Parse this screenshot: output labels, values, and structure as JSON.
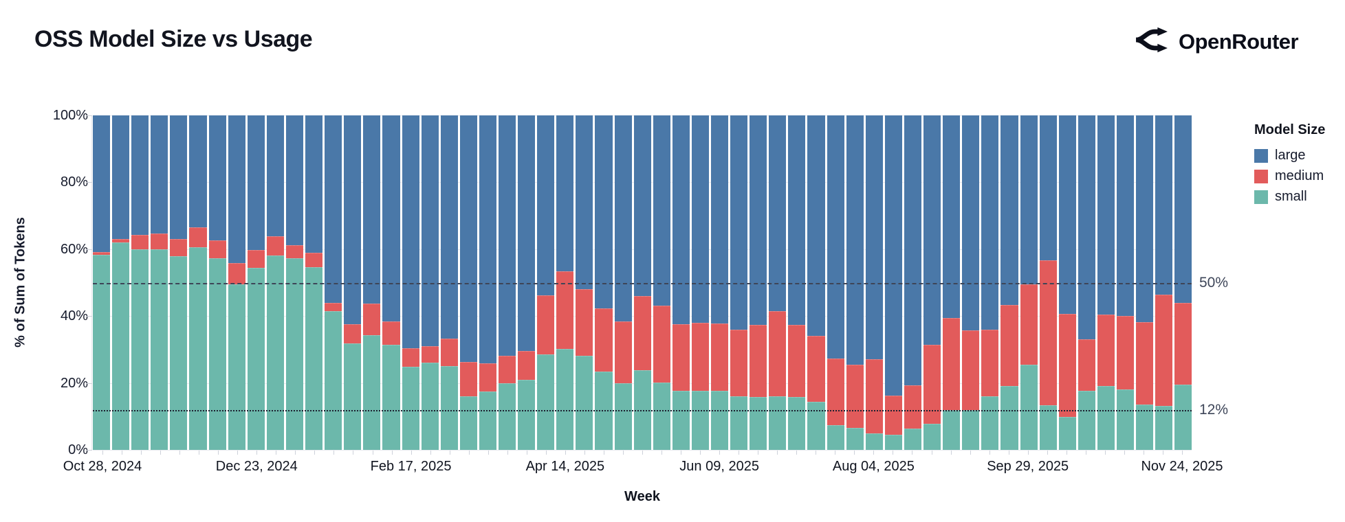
{
  "header": {
    "title": "OSS Model Size vs Usage",
    "brand": "OpenRouter"
  },
  "chart_data": {
    "type": "bar",
    "stacked": true,
    "title": "OSS Model Size vs Usage",
    "xlabel": "Week",
    "ylabel": "% of Sum of Tokens",
    "ylim": [
      0,
      100
    ],
    "grid": "horizontal",
    "y_gridlines": [
      0,
      20,
      40,
      60,
      80,
      100
    ],
    "y_ticks": [
      "0%",
      "20%",
      "40%",
      "60%",
      "80%",
      "100%"
    ],
    "x_tick_every": 8,
    "x_tick_labels": [
      "Oct 28, 2024",
      "Dec 23, 2024",
      "Feb 17, 2025",
      "Apr 14, 2025",
      "Jun 09, 2025",
      "Aug 04, 2025",
      "Sep 29, 2025",
      "Nov 24, 2025"
    ],
    "legend": {
      "title": "Model Size",
      "position": "right",
      "entries": [
        {
          "label": "large",
          "color": "#4A78A8"
        },
        {
          "label": "medium",
          "color": "#E25B5B"
        },
        {
          "label": "small",
          "color": "#6CB8AB"
        }
      ]
    },
    "reference_lines": [
      {
        "value": 50,
        "label": "50%",
        "style": "dashed",
        "color": "#3e4557"
      },
      {
        "value": 12,
        "label": "12%",
        "style": "dotted",
        "color": "#1c2130"
      }
    ],
    "categories": [
      "Oct 28, 2024",
      "Nov 04, 2024",
      "Nov 11, 2024",
      "Nov 18, 2024",
      "Nov 25, 2024",
      "Dec 02, 2024",
      "Dec 09, 2024",
      "Dec 16, 2024",
      "Dec 23, 2024",
      "Dec 30, 2024",
      "Jan 06, 2025",
      "Jan 13, 2025",
      "Jan 20, 2025",
      "Jan 27, 2025",
      "Feb 03, 2025",
      "Feb 10, 2025",
      "Feb 17, 2025",
      "Feb 24, 2025",
      "Mar 03, 2025",
      "Mar 10, 2025",
      "Mar 17, 2025",
      "Mar 24, 2025",
      "Mar 31, 2025",
      "Apr 07, 2025",
      "Apr 14, 2025",
      "Apr 21, 2025",
      "Apr 28, 2025",
      "May 05, 2025",
      "May 12, 2025",
      "May 19, 2025",
      "May 26, 2025",
      "Jun 02, 2025",
      "Jun 09, 2025",
      "Jun 16, 2025",
      "Jun 23, 2025",
      "Jun 30, 2025",
      "Jul 07, 2025",
      "Jul 14, 2025",
      "Jul 21, 2025",
      "Jul 28, 2025",
      "Aug 04, 2025",
      "Aug 11, 2025",
      "Aug 18, 2025",
      "Aug 25, 2025",
      "Sep 01, 2025",
      "Sep 08, 2025",
      "Sep 15, 2025",
      "Sep 22, 2025",
      "Sep 29, 2025",
      "Oct 06, 2025",
      "Oct 13, 2025",
      "Oct 20, 2025",
      "Oct 27, 2025",
      "Nov 03, 2025",
      "Nov 10, 2025",
      "Nov 17, 2025",
      "Nov 24, 2025"
    ],
    "series": [
      {
        "name": "large",
        "color": "#4A78A8",
        "values": [
          40.8,
          37,
          35.8,
          35.4,
          37,
          33.4,
          37.3,
          44.2,
          40.2,
          36.1,
          38.8,
          41,
          56.1,
          62.4,
          56.2,
          61.6,
          69.6,
          69,
          66.7,
          73.8,
          74.2,
          71.9,
          70.4,
          53.8,
          46.7,
          52,
          57.6,
          61.6,
          54.1,
          56.9,
          62.5,
          62,
          62.2,
          64.1,
          62.7,
          58.5,
          62.6,
          66,
          72.7,
          74.5,
          72.9,
          83.8,
          80.6,
          68.6,
          60.5,
          64.2,
          64,
          56.6,
          50.5,
          43.4,
          59.4,
          67,
          59.6,
          60,
          61.9,
          53.5,
          56
        ]
      },
      {
        "name": "medium",
        "color": "#E25B5B",
        "values": [
          0.8,
          1,
          4.2,
          4.6,
          5,
          6.1,
          5.4,
          6.3,
          5.4,
          5.7,
          3.9,
          4.4,
          2.5,
          5.7,
          9.6,
          6.9,
          5.5,
          5,
          8.2,
          10.2,
          8.3,
          8.1,
          8.7,
          17.7,
          23.1,
          19.8,
          19,
          18.5,
          22.1,
          23,
          19.8,
          20.3,
          20.2,
          19.9,
          21.5,
          25.5,
          21.5,
          19.7,
          19.9,
          19,
          22.1,
          11.7,
          13.1,
          23.5,
          27.5,
          23.8,
          20,
          24.4,
          24,
          43.2,
          30.8,
          15.3,
          21.4,
          21.9,
          24.5,
          33.4,
          24.4
        ]
      },
      {
        "name": "small",
        "color": "#6CB8AB",
        "values": [
          58.4,
          62,
          60,
          60,
          58,
          60.5,
          57.3,
          49.5,
          54.4,
          58.2,
          57.3,
          54.6,
          41.4,
          31.9,
          34.2,
          31.5,
          24.9,
          26,
          25.1,
          16,
          17.5,
          20,
          20.9,
          28.5,
          30.2,
          28.2,
          23.4,
          19.9,
          23.8,
          20.1,
          17.7,
          17.7,
          17.6,
          16,
          15.8,
          16,
          15.9,
          14.3,
          7.4,
          6.5,
          5,
          4.5,
          6.3,
          7.9,
          12,
          12,
          16,
          19,
          25.5,
          13.4,
          9.8,
          17.7,
          19,
          18.1,
          13.6,
          13.1,
          19.6
        ]
      }
    ]
  }
}
